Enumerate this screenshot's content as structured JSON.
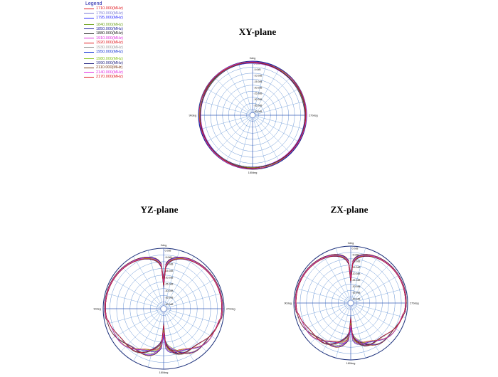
{
  "legend": {
    "title": "Legend",
    "entries": [
      {
        "label": "1710.000(MHz)",
        "color": "#e0181f"
      },
      {
        "label": "1750.000(MHz)",
        "color": "#7b7bd6"
      },
      {
        "label": "1795.000(MHz)",
        "color": "#2a2aff"
      },
      {
        "label": "1840.000(MHz)",
        "color": "#74a626",
        "gap": true
      },
      {
        "label": "1850.000(MHz)",
        "color": "#1c1c9c"
      },
      {
        "label": "1880.000(MHz)",
        "color": "#161616"
      },
      {
        "label": "1910.000(MHz)",
        "color": "#e02ce0"
      },
      {
        "label": "1920.000(MHz)",
        "color": "#e0181f"
      },
      {
        "label": "1930.000(MHz)",
        "color": "#9c9c9c"
      },
      {
        "label": "1950.000(MHz)",
        "color": "#1c3cd6"
      },
      {
        "label": "1980.000(MHz)",
        "color": "#86c41c",
        "gap": true
      },
      {
        "label": "1990.000(MHz)",
        "color": "#1c1c7c"
      },
      {
        "label": "2110.000(MHz)",
        "color": "#7a3a16"
      },
      {
        "label": "2140.000(MHz)",
        "color": "#e02ce0"
      },
      {
        "label": "2170.000(MHz)",
        "color": "#e0181f"
      }
    ]
  },
  "chart_data": [
    {
      "type": "polar",
      "title": "XY-plane",
      "angle_labels": {
        "top": "0deg",
        "right": "270deg",
        "bottom": "180deg",
        "left": "90deg"
      },
      "radial_labels": [
        "0.0dB",
        "-5.0dB",
        "-10.0dB",
        "-15.0dB",
        "-20.0dB",
        "-25.0dB",
        "-30.0dB",
        "-35.0dB",
        "-40.0dB"
      ],
      "r_max_db": 0,
      "r_min_db": -45,
      "grid": true,
      "pattern": "omnidirectional",
      "series_db_range": [
        -2.5,
        -0.5
      ]
    },
    {
      "type": "polar",
      "title": "YZ-plane",
      "angle_labels": {
        "top": "0deg",
        "right": "270deg",
        "bottom": "180deg",
        "left": "90deg"
      },
      "radial_labels": [
        "0.0dB",
        "-5.0dB",
        "-10.0dB",
        "-15.0dB",
        "-20.0dB",
        "-25.0dB",
        "-30.0dB",
        "-35.0dB",
        "-40.0dB"
      ],
      "r_max_db": 0,
      "r_min_db": -45,
      "grid": true,
      "pattern": "heart-shaped, nulls at 0deg and 180deg",
      "series_db_range": [
        -25,
        -1
      ]
    },
    {
      "type": "polar",
      "title": "ZX-plane",
      "angle_labels": {
        "top": "0deg",
        "right": "270deg",
        "bottom": "180deg",
        "left": "90deg"
      },
      "radial_labels": [
        "0.0dB",
        "-5.0dB",
        "-10.0dB",
        "-15.0dB",
        "-20.0dB",
        "-25.0dB",
        "-30.0dB",
        "-35.0dB",
        "-40.0dB"
      ],
      "r_max_db": 0,
      "r_min_db": -45,
      "grid": true,
      "pattern": "heart-shaped, nulls at 0deg and 180deg",
      "series_db_range": [
        -25,
        -1
      ]
    }
  ]
}
